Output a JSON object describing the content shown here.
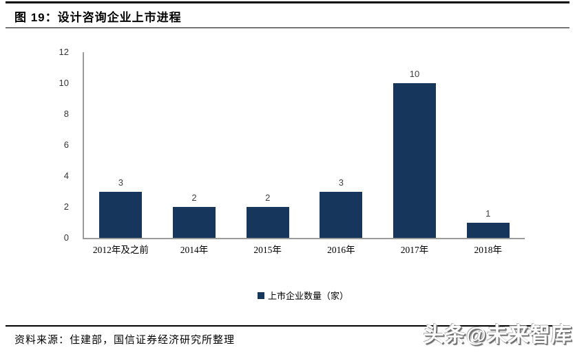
{
  "header": {
    "title": "图 19：设计咨询企业上市进程"
  },
  "chart_data": {
    "type": "bar",
    "title": "设计咨询企业上市进程",
    "categories": [
      "2012年及之前",
      "2014年",
      "2015年",
      "2016年",
      "2017年",
      "2018年"
    ],
    "values": [
      3,
      2,
      2,
      3,
      10,
      1
    ],
    "legend": "上市企业数量（家）",
    "legend_position": "bottom",
    "xlabel": "",
    "ylabel": "",
    "ylim": [
      0,
      12
    ],
    "yticks": [
      0,
      2,
      4,
      6,
      8,
      10,
      12
    ],
    "grid": false,
    "bar_color": "#16365C",
    "axis_color": "#9B9B9B",
    "value_label_color": "#3F3F3F"
  },
  "footer": {
    "source": "资料来源：住建部，国信证券经济研究所整理",
    "watermark": "头条@未来智库"
  }
}
